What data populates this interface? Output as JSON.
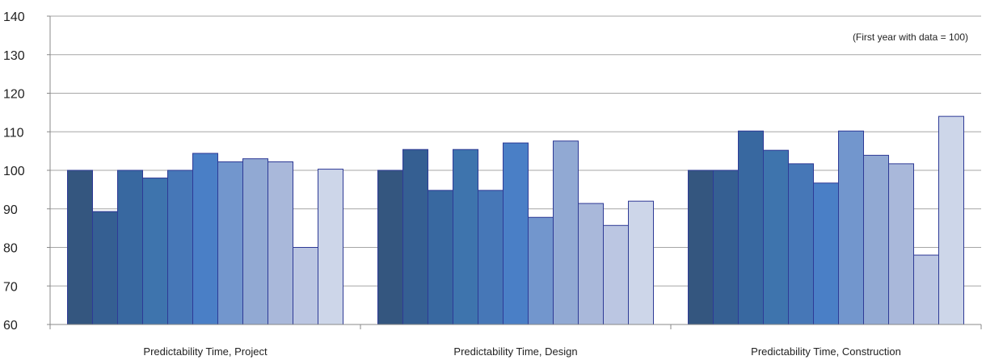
{
  "chart_data": {
    "type": "bar",
    "title": "",
    "xlabel": "",
    "ylabel": "",
    "annotation": "(First year with data = 100)",
    "ylim": [
      60,
      140
    ],
    "yticks": [
      60,
      70,
      80,
      90,
      100,
      110,
      120,
      130,
      140
    ],
    "grid": true,
    "legend": "none",
    "categories": [
      "Predictability Time, Project",
      "Predictability Time, Design",
      "Predictability Time, Construction"
    ],
    "series": [
      {
        "values": [
          100,
          100,
          100
        ]
      },
      {
        "values": [
          89.3,
          105.4,
          100
        ]
      },
      {
        "values": [
          100,
          94.8,
          110.2
        ]
      },
      {
        "values": [
          98,
          105.4,
          105.2
        ]
      },
      {
        "values": [
          100,
          94.8,
          101.7
        ]
      },
      {
        "values": [
          104.4,
          107.1,
          96.7
        ]
      },
      {
        "values": [
          102.2,
          87.8,
          110.2
        ]
      },
      {
        "values": [
          103,
          107.6,
          103.9
        ]
      },
      {
        "values": [
          102.2,
          91.4,
          101.7
        ]
      },
      {
        "values": [
          80,
          85.7,
          78
        ]
      },
      {
        "values": [
          100.3,
          92,
          114
        ]
      }
    ],
    "colors": [
      "#34567f",
      "#355f92",
      "#3868a0",
      "#3e74ad",
      "#4677b7",
      "#4a7fc6",
      "#7296cd",
      "#91a9d3",
      "#a9b8da",
      "#bbc6e2",
      "#cdd6e9"
    ],
    "bar_outline": "#2e3a96",
    "grid_color": "#a6a6a6"
  }
}
